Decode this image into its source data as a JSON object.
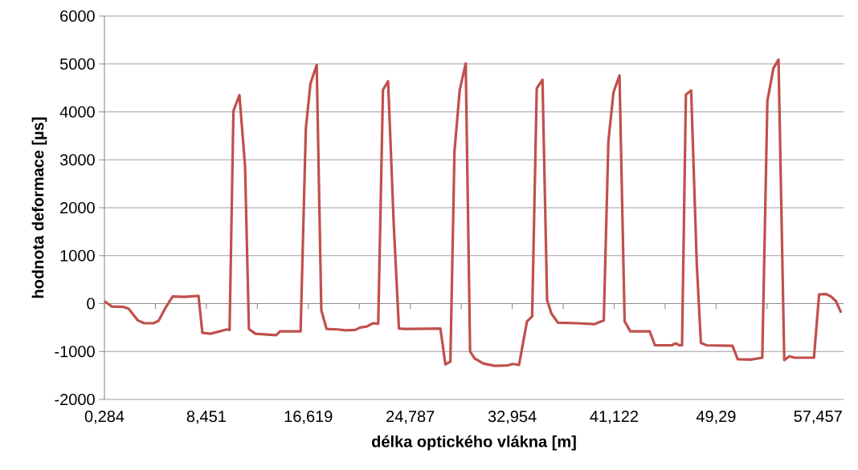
{
  "chart_data": {
    "type": "line",
    "xlabel": "délka optického vlákna [m]",
    "ylabel": "hodnota deformace [µs]",
    "xlim": [
      0.284,
      59.5
    ],
    "ylim": [
      -2000,
      6000
    ],
    "xticks": [
      {
        "value": 0.284,
        "label": "0,284"
      },
      {
        "value": 4.3675,
        "label": null
      },
      {
        "value": 8.451,
        "label": "8,451"
      },
      {
        "value": 12.535,
        "label": null
      },
      {
        "value": 16.619,
        "label": "16,619"
      },
      {
        "value": 20.703,
        "label": null
      },
      {
        "value": 24.787,
        "label": "24,787"
      },
      {
        "value": 28.871,
        "label": null
      },
      {
        "value": 32.954,
        "label": "32,954"
      },
      {
        "value": 37.038,
        "label": null
      },
      {
        "value": 41.122,
        "label": "41,122"
      },
      {
        "value": 45.206,
        "label": null
      },
      {
        "value": 49.29,
        "label": "49,29"
      },
      {
        "value": 53.374,
        "label": null
      },
      {
        "value": 57.457,
        "label": "57,457"
      }
    ],
    "yticks": [
      -2000,
      -1000,
      0,
      1000,
      2000,
      3000,
      4000,
      5000,
      6000
    ],
    "grid": "y",
    "marker": "none",
    "x": [
      0.284,
      0.88,
      1.82,
      2.23,
      2.96,
      3.47,
      4.2,
      4.62,
      5.24,
      5.75,
      6.68,
      7.82,
      8.13,
      8.76,
      10.1,
      10.31,
      10.62,
      11.1,
      11.55,
      11.86,
      12.38,
      14.04,
      14.35,
      16.0,
      16.42,
      16.79,
      17.29,
      17.66,
      18.08,
      19.0,
      19.6,
      20.36,
      20.77,
      21.29,
      21.81,
      22.22,
      22.6,
      23.01,
      23.47,
      23.88,
      24.29,
      27.2,
      27.6,
      28.0,
      28.33,
      28.75,
      29.23,
      29.58,
      29.93,
      30.62,
      31.55,
      32.6,
      33.0,
      33.5,
      34.14,
      34.55,
      34.92,
      35.38,
      35.75,
      36.1,
      36.62,
      38.17,
      39.52,
      40.29,
      40.66,
      41.07,
      41.55,
      41.96,
      42.42,
      43.97,
      44.39,
      45.73,
      46.05,
      46.36,
      46.56,
      46.87,
      47.29,
      47.74,
      48.07,
      48.53,
      50.6,
      51.02,
      52.05,
      52.99,
      53.4,
      53.88,
      54.29,
      54.75,
      55.16,
      55.58,
      57.13,
      57.54,
      58.06,
      58.48,
      58.89,
      59.31
    ],
    "series": [
      {
        "color": "#c0504d",
        "values": [
          50,
          -60,
          -70,
          -110,
          -350,
          -410,
          -410,
          -360,
          -60,
          150,
          140,
          160,
          -610,
          -630,
          -540,
          -550,
          4020,
          4350,
          2870,
          -530,
          -630,
          -660,
          -580,
          -580,
          3650,
          4590,
          4980,
          -140,
          -530,
          -540,
          -560,
          -550,
          -500,
          -480,
          -410,
          -420,
          4460,
          4640,
          1610,
          -520,
          -530,
          -520,
          -1270,
          -1210,
          3180,
          4460,
          5010,
          -1000,
          -1140,
          -1250,
          -1300,
          -1290,
          -1260,
          -1280,
          -370,
          -270,
          4490,
          4670,
          70,
          -210,
          -400,
          -410,
          -430,
          -350,
          3390,
          4410,
          4760,
          -370,
          -580,
          -580,
          -870,
          -870,
          -830,
          -870,
          -870,
          4360,
          4450,
          830,
          -820,
          -870,
          -880,
          -1160,
          -1170,
          -1130,
          4230,
          4910,
          5090,
          -1180,
          -1100,
          -1130,
          -1130,
          190,
          200,
          150,
          50,
          -190
        ]
      }
    ]
  }
}
